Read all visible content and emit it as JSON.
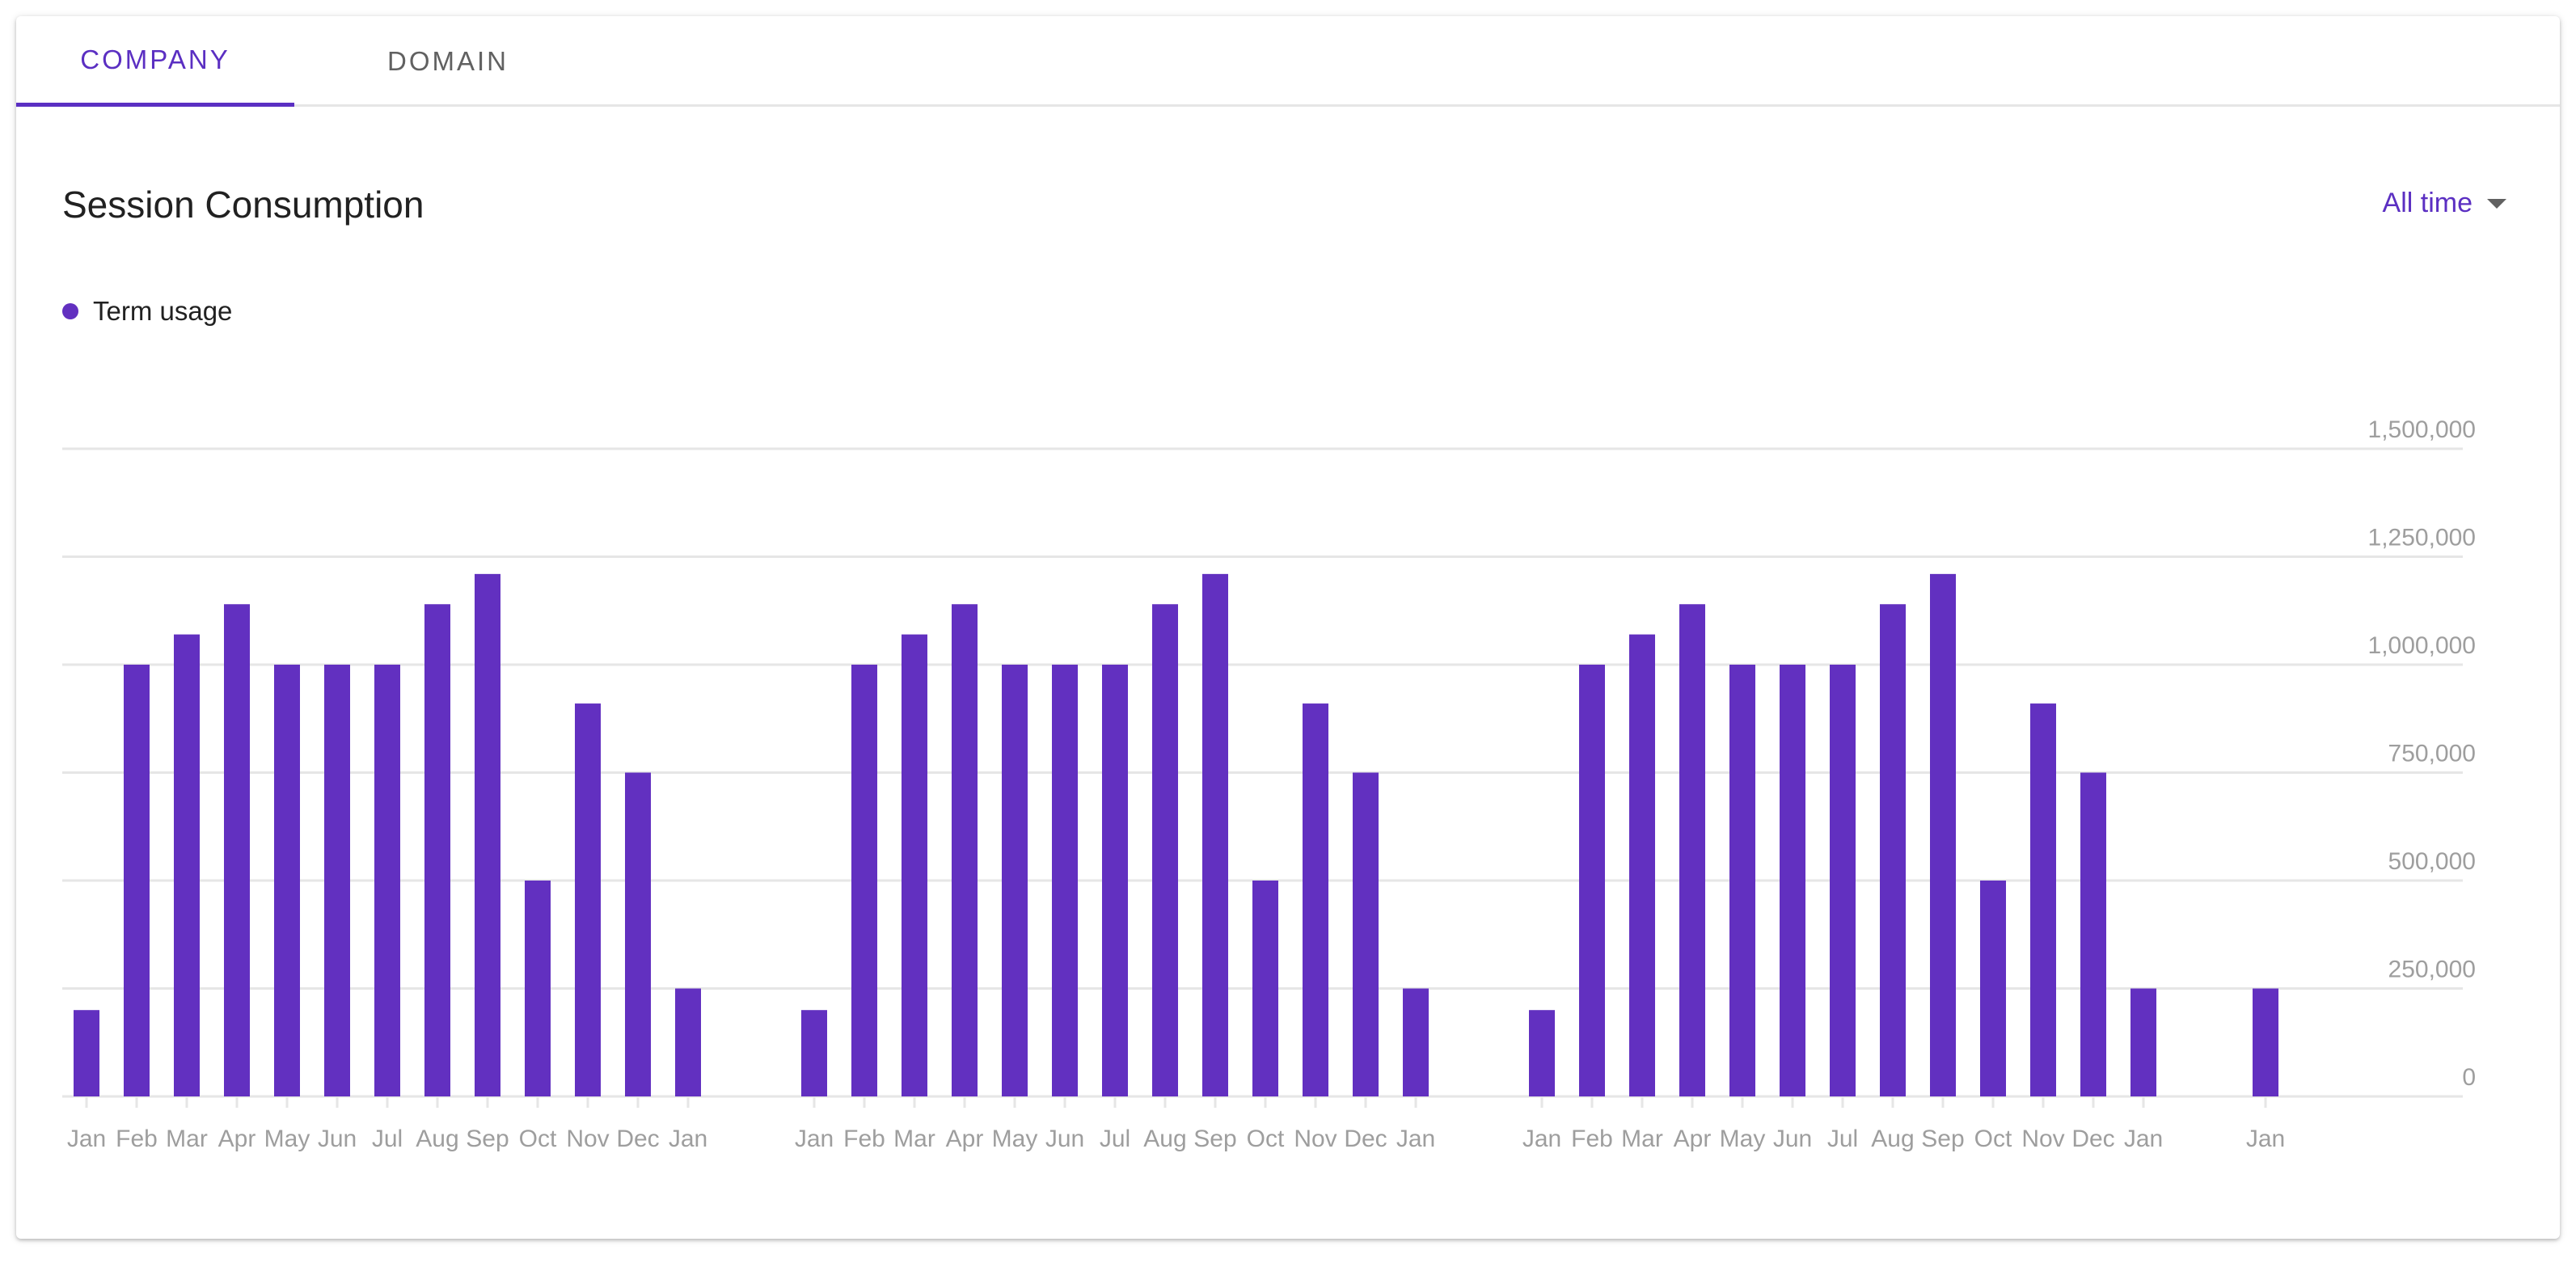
{
  "tabs": [
    {
      "label": "COMPANY",
      "active": true
    },
    {
      "label": "DOMAIN",
      "active": false
    }
  ],
  "header": {
    "title": "Session Consumption",
    "range_label": "All time"
  },
  "legend": {
    "label": "Term usage",
    "color": "#6230c0"
  },
  "colors": {
    "accent": "#5b2fc2",
    "bar": "#6230c0",
    "grid": "#e6e6e6",
    "axis_text": "#9e9e9e"
  },
  "chart_data": {
    "type": "bar",
    "ylim": [
      0,
      1500000
    ],
    "y_ticks": [
      0,
      250000,
      500000,
      750000,
      1000000,
      1250000,
      1500000
    ],
    "y_tick_labels": [
      "0",
      "250,000",
      "500,000",
      "750,000",
      "1,000,000",
      "1,250,000",
      "1,500,000"
    ],
    "grid": true,
    "categories": [
      "Jan",
      "Feb",
      "Mar",
      "Apr",
      "May",
      "Jun",
      "Jul",
      "Aug",
      "Sep",
      "Oct",
      "Nov",
      "Dec",
      "Jan",
      "Jan",
      "Feb",
      "Mar",
      "Apr",
      "May",
      "Jun",
      "Jul",
      "Aug",
      "Sep",
      "Oct",
      "Nov",
      "Dec",
      "Jan",
      "Jan",
      "Feb",
      "Mar",
      "Apr",
      "May",
      "Jun",
      "Jul",
      "Aug",
      "Sep",
      "Oct",
      "Nov",
      "Dec",
      "Jan",
      "Jan"
    ],
    "series": [
      {
        "name": "Term usage",
        "values": [
          200000,
          1000000,
          1070000,
          1140000,
          1000000,
          1000000,
          1000000,
          1140000,
          1210000,
          500000,
          910000,
          750000,
          250000,
          200000,
          1000000,
          1070000,
          1140000,
          1000000,
          1000000,
          1000000,
          1140000,
          1210000,
          500000,
          910000,
          750000,
          250000,
          200000,
          1000000,
          1070000,
          1140000,
          1000000,
          1000000,
          1000000,
          1140000,
          1210000,
          500000,
          910000,
          750000,
          250000,
          250000
        ]
      }
    ]
  }
}
